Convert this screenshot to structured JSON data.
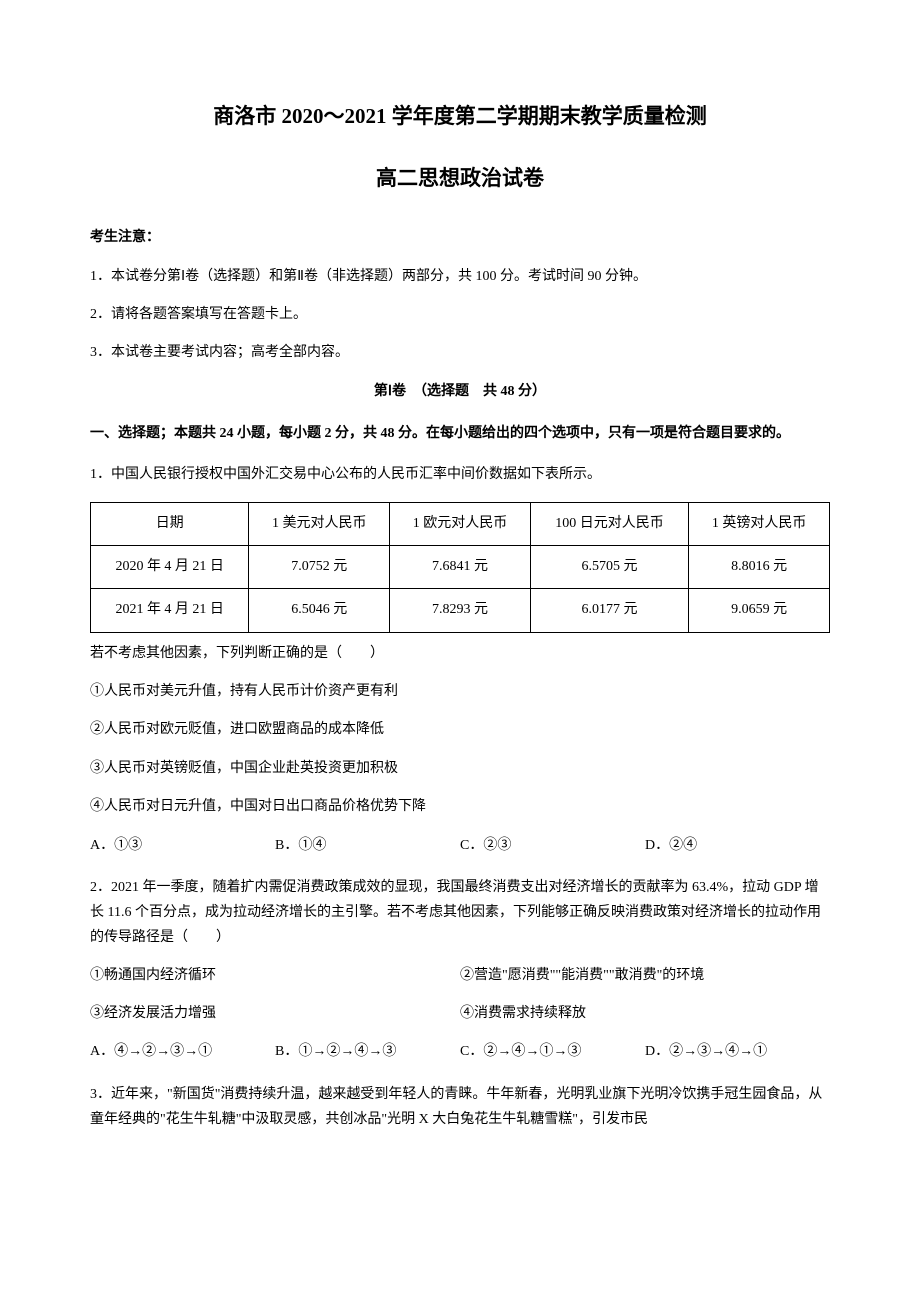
{
  "header": {
    "title_main": "商洛市 2020～2021 学年度第二学期期末教学质量检测",
    "title_sub": "高二思想政治试卷"
  },
  "notice": {
    "label": "考生注意：",
    "items": [
      "1．本试卷分第Ⅰ卷（选择题）和第Ⅱ卷（非选择题）两部分，共 100 分。考试时间 90 分钟。",
      "2．请将各题答案填写在答题卡上。",
      "3．本试卷主要考试内容；高考全部内容。"
    ]
  },
  "section1": {
    "header": "第Ⅰ卷　（选择题　共 48 分）",
    "instruction": "一、选择题；本题共 24 小题，每小题 2 分，共 48 分。在每小题给出的四个选项中，只有一项是符合题目要求的。"
  },
  "q1": {
    "text": "1．中国人民银行授权中国外汇交易中心公布的人民币汇率中间价数据如下表所示。",
    "table": {
      "headers": [
        "日期",
        "1 美元对人民币",
        "1 欧元对人民币",
        "100 日元对人民币",
        "1 英镑对人民币"
      ],
      "rows": [
        [
          "2020 年 4 月 21 日",
          "7.0752 元",
          "7.6841 元",
          "6.5705 元",
          "8.8016 元"
        ],
        [
          "2021 年 4 月 21 日",
          "6.5046 元",
          "7.8293 元",
          "6.0177 元",
          "9.0659 元"
        ]
      ]
    },
    "followup": "若不考虑其他因素，下列判断正确的是（　　）",
    "statements": [
      "①人民币对美元升值，持有人民币计价资产更有利",
      "②人民币对欧元贬值，进口欧盟商品的成本降低",
      "③人民币对英镑贬值，中国企业赴英投资更加积极",
      "④人民币对日元升值，中国对日出口商品价格优势下降"
    ],
    "options": [
      "A．①③",
      "B．①④",
      "C．②③",
      "D．②④"
    ]
  },
  "q2": {
    "text": "2．2021 年一季度，随着扩内需促消费政策成效的显现，我国最终消费支出对经济增长的贡献率为 63.4%，拉动 GDP 增长 11.6 个百分点，成为拉动经济增长的主引擎。若不考虑其他因素，下列能够正确反映消费政策对经济增长的拉动作用的传导路径是（　　）",
    "statements_pairs": [
      [
        "①畅通国内经济循环",
        "②营造\"愿消费\"\"能消费\"\"敢消费\"的环境"
      ],
      [
        "③经济发展活力增强",
        "④消费需求持续释放"
      ]
    ],
    "options": [
      "A．④→②→③→①",
      "B．①→②→④→③",
      "C．②→④→①→③",
      "D．②→③→④→①"
    ]
  },
  "q3": {
    "text": "3．近年来，\"新国货\"消费持续升温，越来越受到年轻人的青睐。牛年新春，光明乳业旗下光明冷饮携手冠生园食品，从童年经典的\"花生牛轧糖\"中汲取灵感，共创冰品\"光明 X 大白兔花生牛轧糖雪糕\"，引发市民"
  }
}
